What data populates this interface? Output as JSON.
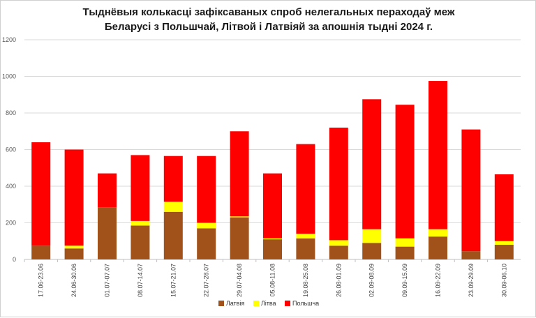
{
  "chart_data": {
    "type": "bar",
    "stacked": true,
    "title_line1": "Тыднёвыя колькасці зафіксаваных спроб нелегальных пераходаў меж",
    "title_line2": "Беларусі з Польшчай, Літвой і Латвіяй за апошнія тыдні 2024 г.",
    "xlabel": "",
    "ylabel": "",
    "ylim": [
      0,
      1200
    ],
    "yticks": [
      0,
      200,
      400,
      600,
      800,
      1000,
      1200
    ],
    "grid": true,
    "legend_position": "bottom",
    "categories": [
      "17.06-23.06",
      "24.06-30.06",
      "01.07-07.07",
      "08.07-14.07",
      "15.07-21.07",
      "22.07-28.07",
      "29.07-04.08",
      "05.08-11.08",
      "19.08-25.08",
      "26.08-01.09",
      "02.09-08.09",
      "09.09-15.09",
      "16.09-22.09",
      "23.09-29.09",
      "30.09-06.10"
    ],
    "series": [
      {
        "name": "Латвія",
        "color": "#a0521a",
        "values": [
          75,
          60,
          285,
          185,
          260,
          170,
          230,
          110,
          115,
          75,
          90,
          70,
          125,
          45,
          80
        ]
      },
      {
        "name": "Літва",
        "color": "#ffff00",
        "values": [
          0,
          15,
          0,
          25,
          55,
          30,
          5,
          5,
          25,
          30,
          75,
          45,
          40,
          0,
          20
        ]
      },
      {
        "name": "Польшча",
        "color": "#ff0000",
        "values": [
          565,
          525,
          185,
          360,
          250,
          365,
          465,
          355,
          490,
          615,
          710,
          730,
          810,
          665,
          365
        ]
      }
    ]
  }
}
